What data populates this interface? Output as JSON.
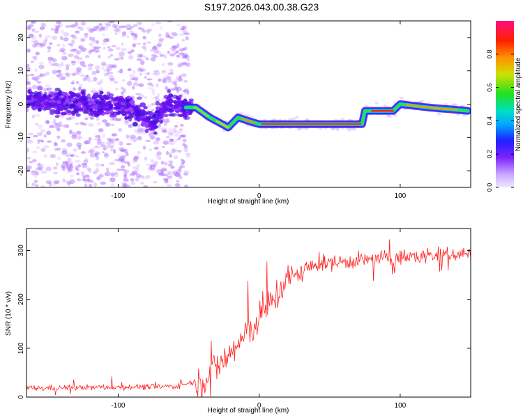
{
  "figure_title": "S197.2026.043.00.38.G23",
  "chart_data": [
    {
      "type": "heatmap",
      "title": "",
      "xlabel": "Height of straight line (km)",
      "ylabel": "Frequency (Hz)",
      "xlim": [
        -165,
        150
      ],
      "ylim": [
        -25,
        25
      ],
      "xticks": [
        -100,
        0,
        100
      ],
      "yticks": [
        -20,
        -10,
        0,
        10,
        20
      ],
      "colorbar": {
        "label": "Normalized spectral amplitude",
        "range": [
          0,
          1
        ],
        "ticks": [
          "0.0",
          "0.2",
          "0.4",
          "0.6",
          "0.8"
        ],
        "tick_values": [
          0,
          0.2,
          0.4,
          0.6,
          0.8
        ]
      },
      "ridge": {
        "description_points": [
          {
            "x": -165,
            "freq": 1
          },
          {
            "x": -120,
            "freq": 0
          },
          {
            "x": -90,
            "freq": -1
          },
          {
            "x": -75,
            "freq": -6
          },
          {
            "x": -65,
            "freq": 0
          },
          {
            "x": -55,
            "freq": -1
          },
          {
            "x": -45,
            "freq": -1
          },
          {
            "x": -35,
            "freq": -4
          },
          {
            "x": -22,
            "freq": -7
          },
          {
            "x": -15,
            "freq": -4
          },
          {
            "x": -8,
            "freq": -5
          },
          {
            "x": 0,
            "freq": -6
          },
          {
            "x": 20,
            "freq": -6
          },
          {
            "x": 50,
            "freq": -6
          },
          {
            "x": 73,
            "freq": -6
          },
          {
            "x": 75,
            "freq": -2
          },
          {
            "x": 95,
            "freq": -2
          },
          {
            "x": 100,
            "freq": 0
          },
          {
            "x": 120,
            "freq": -1
          },
          {
            "x": 148,
            "freq": -2
          }
        ]
      }
    },
    {
      "type": "line",
      "title": "",
      "xlabel": "Height of straight line (km)",
      "ylabel": "SNR (10 * v/v)",
      "xlim": [
        -165,
        150
      ],
      "ylim": [
        0,
        345
      ],
      "xticks": [
        -100,
        0,
        100
      ],
      "yticks": [
        0,
        100,
        200,
        300
      ],
      "series": [
        {
          "name": "SNR",
          "color": "#ff2020",
          "trend_points": [
            {
              "x": -165,
              "y": 18
            },
            {
              "x": -60,
              "y": 22
            },
            {
              "x": -40,
              "y": 35
            },
            {
              "x": -20,
              "y": 90
            },
            {
              "x": 0,
              "y": 160
            },
            {
              "x": 20,
              "y": 240
            },
            {
              "x": 40,
              "y": 272
            },
            {
              "x": 80,
              "y": 282
            },
            {
              "x": 150,
              "y": 295
            }
          ]
        }
      ]
    }
  ]
}
